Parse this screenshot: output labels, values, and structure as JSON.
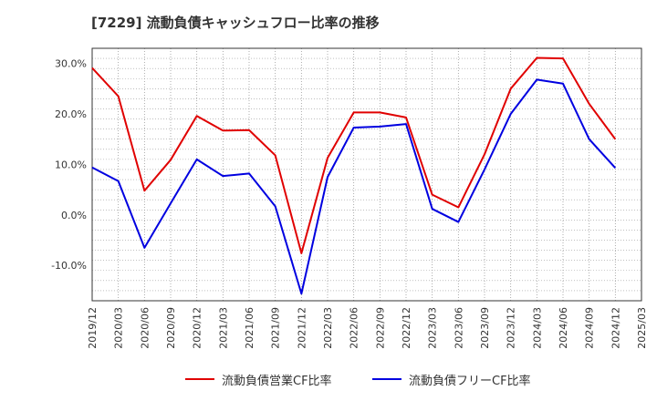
{
  "title": "[7229]  流動負債キャッシュフロー比率の推移",
  "chart_data": {
    "type": "line",
    "x_ticks": [
      "2019/12",
      "2020/03",
      "2020/06",
      "2020/09",
      "2020/12",
      "2021/03",
      "2021/06",
      "2021/09",
      "2021/12",
      "2022/03",
      "2022/06",
      "2022/09",
      "2022/12",
      "2023/03",
      "2023/06",
      "2023/09",
      "2023/12",
      "2024/03",
      "2024/06",
      "2024/09",
      "2024/12",
      "2025/03"
    ],
    "y_ticks": [
      "30.0%",
      "20.0%",
      "10.0%",
      "0.0%",
      "-10.0%"
    ],
    "ylim": [
      -17,
      33
    ],
    "grid": true,
    "legend_position": "bottom",
    "series": [
      {
        "name": "流動負債営業CF比率",
        "color": "#e00000",
        "x": [
          "2019/12",
          "2020/03",
          "2020/06",
          "2020/09",
          "2020/12",
          "2021/03",
          "2021/06",
          "2021/09",
          "2021/12",
          "2022/03",
          "2022/06",
          "2022/09",
          "2022/12",
          "2023/03",
          "2023/06",
          "2023/09",
          "2023/12",
          "2024/03",
          "2024/06",
          "2024/09",
          "2024/12"
        ],
        "values": [
          29.1,
          23.5,
          4.8,
          10.9,
          19.6,
          16.7,
          16.8,
          11.8,
          -7.6,
          11.3,
          20.3,
          20.3,
          19.3,
          4.0,
          1.5,
          12.0,
          25.0,
          31.1,
          31.0,
          22.0,
          15.0
        ]
      },
      {
        "name": "流動負債フリーCF比率",
        "color": "#0000e0",
        "x": [
          "2019/12",
          "2020/03",
          "2020/06",
          "2020/09",
          "2020/12",
          "2021/03",
          "2021/06",
          "2021/09",
          "2021/12",
          "2022/03",
          "2022/06",
          "2022/09",
          "2022/12",
          "2023/03",
          "2023/06",
          "2023/09",
          "2023/12",
          "2024/03",
          "2024/06",
          "2024/09",
          "2024/12"
        ],
        "values": [
          9.4,
          6.7,
          -6.5,
          2.3,
          11.0,
          7.7,
          8.2,
          1.7,
          -15.6,
          7.5,
          17.3,
          17.5,
          18.0,
          1.2,
          -1.4,
          9.0,
          20.0,
          26.8,
          26.0,
          15.0,
          9.3
        ]
      }
    ]
  }
}
